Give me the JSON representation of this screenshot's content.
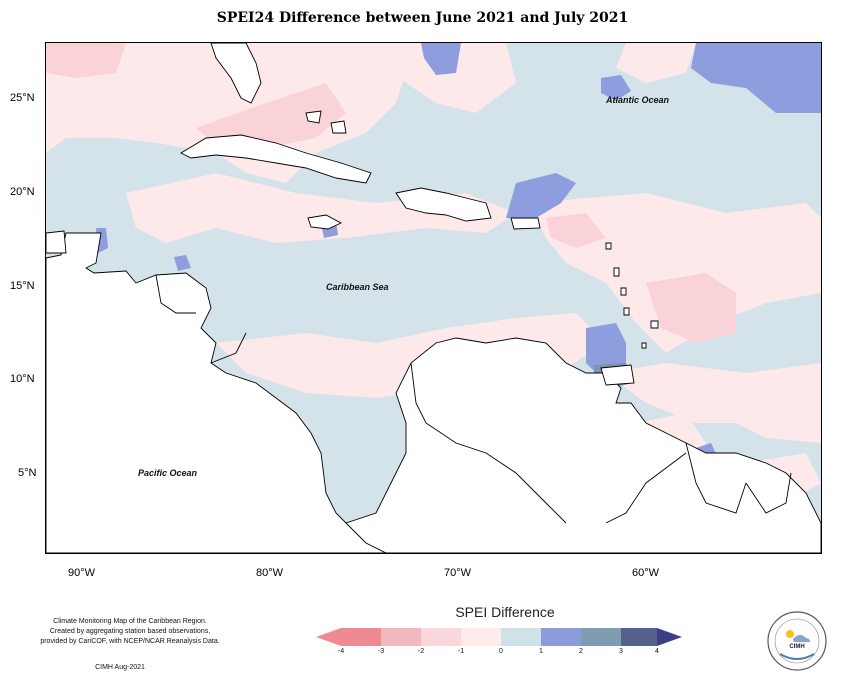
{
  "title": "SPEI24 Difference between June 2021 and July 2021",
  "y_axis_labels": [
    "25°N",
    "20°N",
    "15°N",
    "10°N",
    "5°N"
  ],
  "x_axis_labels": [
    "90°W",
    "80°W",
    "70°W",
    "60°W"
  ],
  "ocean_labels": {
    "atlantic": "Atlantic Ocean",
    "caribbean": "Caribbean Sea",
    "pacific": "Pacific Ocean"
  },
  "credit": {
    "line1": "Climate Monitoring Map of the Caribbean Region.",
    "line2": "Created by aggregating station based observations,",
    "line3": "provided by CariCOF, with NCEP/NCAR Reanalysis Data.",
    "issuer": "CIMH Aug-2021"
  },
  "legend": {
    "title": "SPEI Difference",
    "ticks": [
      "-4",
      "-3",
      "-2",
      "-1",
      "0",
      "1",
      "2",
      "3",
      "4"
    ],
    "colors": [
      "#f08a92",
      "#f1b8bd",
      "#fad7dc",
      "#fdeceb",
      "#cfe2e8",
      "#8b9bdc",
      "#7f9db0",
      "#56608c"
    ]
  },
  "logo": {
    "name": "CIMH"
  }
}
